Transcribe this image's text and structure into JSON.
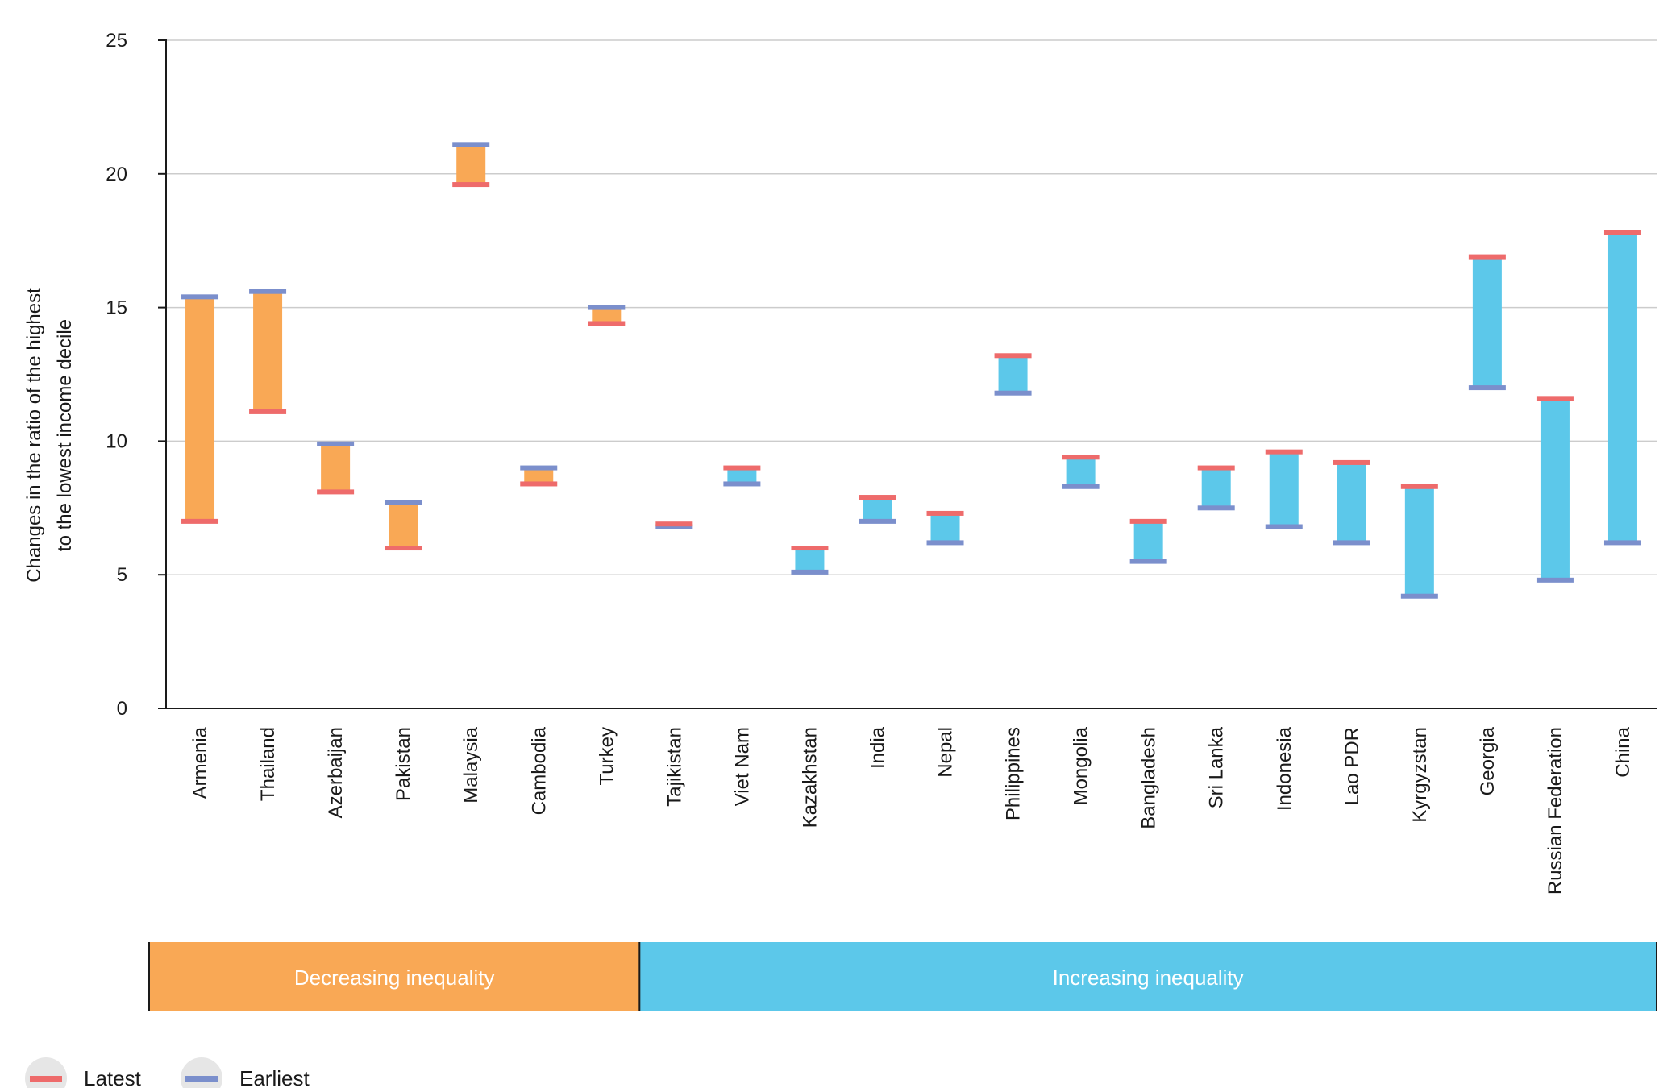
{
  "chart_data": {
    "type": "range-bar",
    "ylabel_lines": [
      "Changes in the ratio of the highest",
      "to the lowest income decile"
    ],
    "ylim": [
      0,
      25
    ],
    "yticks": [
      0,
      5,
      10,
      15,
      20,
      25
    ],
    "grid": true,
    "categories": [
      "Armenia",
      "Thailand",
      "Azerbaijan",
      "Pakistan",
      "Malaysia",
      "Cambodia",
      "Turkey",
      "Tajikistan",
      "Viet Nam",
      "Kazakhstan",
      "India",
      "Nepal",
      "Philippines",
      "Mongolia",
      "Bangladesh",
      "Sri Lanka",
      "Indonesia",
      "Lao PDR",
      "Kyrgyzstan",
      "Georgia",
      "Russian Federation",
      "China"
    ],
    "earliest": [
      15.4,
      15.6,
      9.9,
      7.7,
      21.1,
      9.0,
      15.0,
      6.8,
      8.4,
      5.1,
      7.0,
      6.2,
      11.8,
      8.3,
      5.5,
      7.5,
      6.8,
      6.2,
      4.2,
      12.0,
      4.8,
      6.2
    ],
    "latest": [
      7.0,
      11.1,
      8.1,
      6.0,
      19.6,
      8.4,
      14.4,
      6.9,
      9.0,
      6.0,
      7.9,
      7.3,
      13.2,
      9.4,
      7.0,
      9.0,
      9.6,
      9.2,
      8.3,
      16.9,
      11.6,
      17.8
    ],
    "groups": [
      {
        "label": "Decreasing inequality",
        "start": 0,
        "end": 6,
        "color": "#F9A855"
      },
      {
        "label": "Increasing inequality",
        "start": 7,
        "end": 21,
        "color": "#5CC8EA"
      }
    ],
    "legend": [
      {
        "label": "Latest",
        "color": "#EE6B6B"
      },
      {
        "label": "Earliest",
        "color": "#7B8FCC"
      }
    ],
    "legend_position": "bottom-left"
  }
}
